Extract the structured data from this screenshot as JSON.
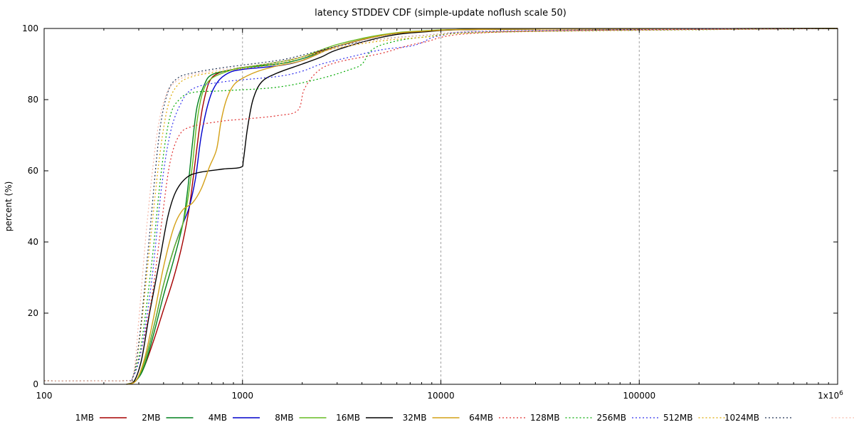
{
  "chart_data": {
    "type": "line",
    "title": "latency STDDEV CDF (simple-update noflush scale 50)",
    "xlabel": "",
    "ylabel": "percent (%)",
    "x_scale": "log",
    "xlim": [
      100,
      1000000
    ],
    "ylim": [
      0,
      100
    ],
    "x_ticks": [
      {
        "value": 100,
        "label": "100"
      },
      {
        "value": 1000,
        "label": "1000"
      },
      {
        "value": 10000,
        "label": "10000"
      },
      {
        "value": 100000,
        "label": "100000"
      },
      {
        "value": 1000000,
        "label": "1x10",
        "sup": "6"
      }
    ],
    "y_ticks": [
      0,
      20,
      40,
      60,
      80,
      100
    ],
    "grid": "dashed vertical at x ticks",
    "legend_position": "bottom",
    "series": [
      {
        "name": "1MB",
        "color": "#a50000",
        "style": "solid",
        "points": [
          [
            260,
            0
          ],
          [
            290,
            1
          ],
          [
            320,
            5
          ],
          [
            360,
            13
          ],
          [
            400,
            21
          ],
          [
            450,
            30
          ],
          [
            500,
            40
          ],
          [
            540,
            50
          ],
          [
            570,
            60
          ],
          [
            600,
            70
          ],
          [
            630,
            78
          ],
          [
            680,
            85
          ],
          [
            760,
            87.5
          ],
          [
            900,
            88.5
          ],
          [
            1000,
            89
          ],
          [
            1500,
            90.5
          ],
          [
            2000,
            92
          ],
          [
            3000,
            95
          ],
          [
            5000,
            98
          ],
          [
            8000,
            99.2
          ],
          [
            20000,
            99.8
          ],
          [
            1000000,
            100
          ]
        ]
      },
      {
        "name": "2MB",
        "color": "#00801d",
        "style": "solid",
        "points": [
          [
            260,
            0
          ],
          [
            290,
            1
          ],
          [
            320,
            5
          ],
          [
            360,
            15
          ],
          [
            400,
            25
          ],
          [
            450,
            35
          ],
          [
            500,
            45
          ],
          [
            530,
            55
          ],
          [
            560,
            68
          ],
          [
            590,
            78
          ],
          [
            640,
            84
          ],
          [
            700,
            87
          ],
          [
            900,
            88.5
          ],
          [
            1000,
            89
          ],
          [
            1500,
            90
          ],
          [
            2000,
            91.5
          ],
          [
            3000,
            95
          ],
          [
            5000,
            98
          ],
          [
            8000,
            99.2
          ],
          [
            20000,
            99.8
          ],
          [
            1000000,
            100
          ]
        ]
      },
      {
        "name": "4MB",
        "color": "#0000cc",
        "style": "solid",
        "points": [
          [
            260,
            0
          ],
          [
            290,
            1
          ],
          [
            320,
            6
          ],
          [
            360,
            17
          ],
          [
            400,
            28
          ],
          [
            450,
            38
          ],
          [
            500,
            45
          ],
          [
            540,
            50
          ],
          [
            580,
            58
          ],
          [
            620,
            70
          ],
          [
            680,
            80
          ],
          [
            750,
            85
          ],
          [
            850,
            87.5
          ],
          [
            1000,
            88.5
          ],
          [
            1500,
            89.5
          ],
          [
            2000,
            91
          ],
          [
            3000,
            95
          ],
          [
            5000,
            98
          ],
          [
            8000,
            99.2
          ],
          [
            20000,
            99.8
          ],
          [
            1000000,
            100
          ]
        ]
      },
      {
        "name": "8MB",
        "color": "#66bb22",
        "style": "solid",
        "points": [
          [
            260,
            0
          ],
          [
            290,
            1
          ],
          [
            320,
            6
          ],
          [
            360,
            17
          ],
          [
            400,
            28
          ],
          [
            450,
            38
          ],
          [
            500,
            45
          ],
          [
            530,
            52
          ],
          [
            560,
            62
          ],
          [
            590,
            74
          ],
          [
            630,
            82
          ],
          [
            700,
            86
          ],
          [
            900,
            88.5
          ],
          [
            1000,
            89
          ],
          [
            1500,
            90.5
          ],
          [
            2000,
            92
          ],
          [
            3000,
            95.5
          ],
          [
            5000,
            98.2
          ],
          [
            8000,
            99.3
          ],
          [
            20000,
            99.8
          ],
          [
            1000000,
            100
          ]
        ]
      },
      {
        "name": "16MB",
        "color": "#000000",
        "style": "solid",
        "points": [
          [
            260,
            0
          ],
          [
            285,
            1
          ],
          [
            310,
            7
          ],
          [
            340,
            20
          ],
          [
            380,
            34
          ],
          [
            420,
            47
          ],
          [
            460,
            54
          ],
          [
            520,
            58
          ],
          [
            600,
            59.5
          ],
          [
            800,
            60.5
          ],
          [
            980,
            61
          ],
          [
            1010,
            63
          ],
          [
            1060,
            72
          ],
          [
            1130,
            80
          ],
          [
            1250,
            85
          ],
          [
            1500,
            87.5
          ],
          [
            2000,
            90
          ],
          [
            2500,
            92
          ],
          [
            3000,
            94
          ],
          [
            5000,
            97.5
          ],
          [
            8000,
            99
          ],
          [
            20000,
            99.8
          ],
          [
            1000000,
            100
          ]
        ]
      },
      {
        "name": "32MB",
        "color": "#d4a017",
        "style": "solid",
        "points": [
          [
            260,
            0
          ],
          [
            290,
            1
          ],
          [
            320,
            7
          ],
          [
            360,
            20
          ],
          [
            400,
            33
          ],
          [
            450,
            44
          ],
          [
            500,
            49
          ],
          [
            560,
            51
          ],
          [
            620,
            55
          ],
          [
            680,
            61
          ],
          [
            740,
            66
          ],
          [
            780,
            74
          ],
          [
            830,
            80
          ],
          [
            900,
            84
          ],
          [
            1000,
            86
          ],
          [
            1200,
            88
          ],
          [
            1500,
            89.5
          ],
          [
            2000,
            91
          ],
          [
            3000,
            95
          ],
          [
            5000,
            98
          ],
          [
            8000,
            99.2
          ],
          [
            20000,
            99.8
          ],
          [
            1000000,
            100
          ]
        ]
      },
      {
        "name": "64MB",
        "color": "#e03030",
        "style": "dotted",
        "points": [
          [
            100,
            1
          ],
          [
            250,
            1
          ],
          [
            280,
            2
          ],
          [
            310,
            10
          ],
          [
            350,
            25
          ],
          [
            390,
            45
          ],
          [
            430,
            62
          ],
          [
            480,
            70
          ],
          [
            560,
            72.5
          ],
          [
            800,
            74
          ],
          [
            1000,
            74.5
          ],
          [
            1500,
            75.5
          ],
          [
            1900,
            77
          ],
          [
            2050,
            83
          ],
          [
            2400,
            88
          ],
          [
            3000,
            90.5
          ],
          [
            5000,
            93
          ],
          [
            8000,
            96
          ],
          [
            20000,
            99
          ],
          [
            1000000,
            100
          ]
        ]
      },
      {
        "name": "128MB",
        "color": "#00aa00",
        "style": "dotted",
        "points": [
          [
            100,
            1
          ],
          [
            250,
            1
          ],
          [
            280,
            2
          ],
          [
            310,
            12
          ],
          [
            350,
            35
          ],
          [
            390,
            60
          ],
          [
            430,
            75
          ],
          [
            480,
            80
          ],
          [
            560,
            82
          ],
          [
            800,
            82.5
          ],
          [
            1500,
            83.5
          ],
          [
            2500,
            86
          ],
          [
            3500,
            88.5
          ],
          [
            4000,
            90
          ],
          [
            4500,
            94
          ],
          [
            5500,
            96
          ],
          [
            8000,
            97.5
          ],
          [
            20000,
            99
          ],
          [
            1000000,
            100
          ]
        ]
      },
      {
        "name": "256MB",
        "color": "#3333ee",
        "style": "dotted",
        "points": [
          [
            100,
            1
          ],
          [
            250,
            1
          ],
          [
            280,
            2
          ],
          [
            310,
            10
          ],
          [
            350,
            30
          ],
          [
            390,
            55
          ],
          [
            430,
            70
          ],
          [
            480,
            78
          ],
          [
            560,
            83
          ],
          [
            800,
            85
          ],
          [
            1500,
            86.5
          ],
          [
            2000,
            88
          ],
          [
            2500,
            90
          ],
          [
            3500,
            92
          ],
          [
            5000,
            94
          ],
          [
            7000,
            95
          ],
          [
            8000,
            96
          ],
          [
            10000,
            98
          ],
          [
            20000,
            99.3
          ],
          [
            1000000,
            100
          ]
        ]
      },
      {
        "name": "512MB",
        "color": "#ddaa00",
        "style": "dotted",
        "points": [
          [
            100,
            1
          ],
          [
            250,
            1
          ],
          [
            280,
            2
          ],
          [
            305,
            14
          ],
          [
            340,
            38
          ],
          [
            380,
            63
          ],
          [
            420,
            78
          ],
          [
            470,
            84
          ],
          [
            560,
            86.5
          ],
          [
            800,
            88
          ],
          [
            1500,
            90
          ],
          [
            2000,
            92
          ],
          [
            3000,
            94.5
          ],
          [
            5000,
            96.5
          ],
          [
            8000,
            97.5
          ],
          [
            20000,
            99
          ],
          [
            1000000,
            100
          ]
        ]
      },
      {
        "name": "1024MB",
        "color": "#223355",
        "style": "dotted",
        "points": [
          [
            100,
            1
          ],
          [
            250,
            1
          ],
          [
            280,
            2
          ],
          [
            305,
            15
          ],
          [
            340,
            42
          ],
          [
            380,
            70
          ],
          [
            420,
            82
          ],
          [
            470,
            86
          ],
          [
            560,
            87.5
          ],
          [
            800,
            89
          ],
          [
            1500,
            91
          ],
          [
            2000,
            92.5
          ],
          [
            3000,
            95
          ],
          [
            5000,
            97
          ],
          [
            8000,
            98
          ],
          [
            20000,
            99.2
          ],
          [
            1000000,
            100
          ]
        ]
      },
      {
        "name": "",
        "color": "#f5b8a8",
        "style": "dotted",
        "points": [
          [
            100,
            1
          ],
          [
            250,
            1
          ],
          [
            280,
            2
          ],
          [
            300,
            18
          ],
          [
            330,
            45
          ],
          [
            370,
            70
          ],
          [
            410,
            81
          ],
          [
            460,
            85
          ],
          [
            560,
            87
          ],
          [
            800,
            88.5
          ],
          [
            1500,
            90.5
          ],
          [
            2000,
            92
          ],
          [
            3000,
            94.5
          ],
          [
            5000,
            97
          ],
          [
            8000,
            98
          ],
          [
            20000,
            99.3
          ],
          [
            1000000,
            100
          ]
        ]
      }
    ]
  }
}
